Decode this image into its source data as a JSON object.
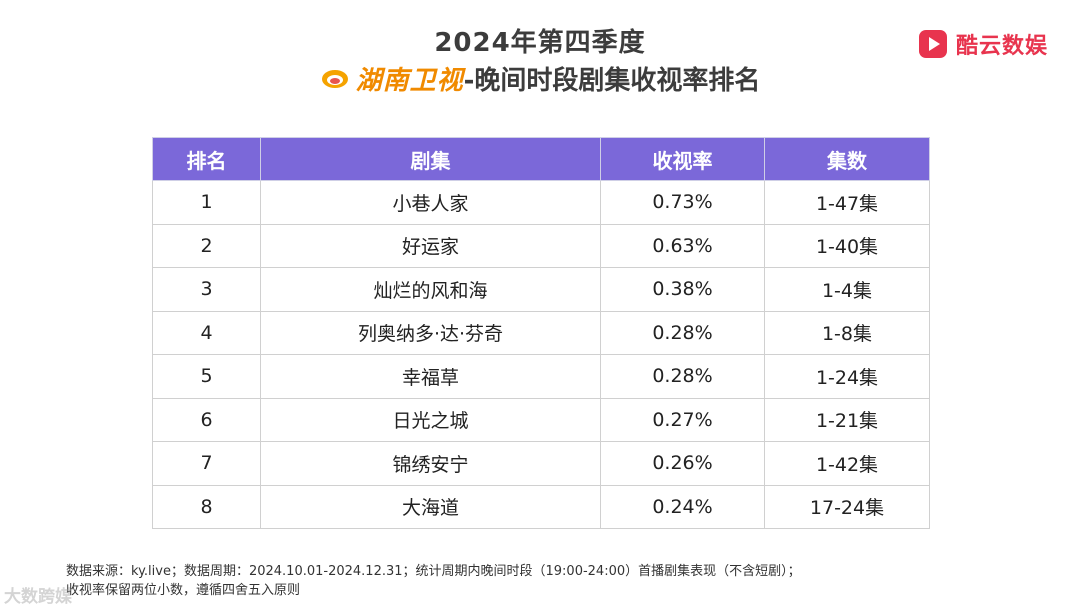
{
  "header": {
    "title_line1": "2024年第四季度",
    "channel_name": "湖南卫视",
    "title_line2_suffix": "-晚间时段剧集收视率排名"
  },
  "brand": {
    "name": "酷云数娱",
    "color": "#e8344e"
  },
  "table": {
    "header_color": "#7b68d9",
    "columns": [
      "排名",
      "剧集",
      "收视率",
      "集数"
    ],
    "rows": [
      {
        "rank": "1",
        "title": "小巷人家",
        "rating": "0.73%",
        "episodes": "1-47集"
      },
      {
        "rank": "2",
        "title": "好运家",
        "rating": "0.63%",
        "episodes": "1-40集"
      },
      {
        "rank": "3",
        "title": "灿烂的风和海",
        "rating": "0.38%",
        "episodes": "1-4集"
      },
      {
        "rank": "4",
        "title": "列奥纳多·达·芬奇",
        "rating": "0.28%",
        "episodes": "1-8集"
      },
      {
        "rank": "5",
        "title": "幸福草",
        "rating": "0.28%",
        "episodes": "1-24集"
      },
      {
        "rank": "6",
        "title": "日光之城",
        "rating": "0.27%",
        "episodes": "1-21集"
      },
      {
        "rank": "7",
        "title": "锦绣安宁",
        "rating": "0.26%",
        "episodes": "1-42集"
      },
      {
        "rank": "8",
        "title": "大海道",
        "rating": "0.24%",
        "episodes": "17-24集"
      }
    ]
  },
  "footnote": {
    "line1": "数据来源：ky.live；数据周期：2024.10.01-2024.12.31；统计周期内晚间时段（19:00-24:00）首播剧集表现（不含短剧）；",
    "line2": "收视率保留两位小数，遵循四舍五入原则"
  },
  "watermark": {
    "text": "大数跨媒"
  }
}
